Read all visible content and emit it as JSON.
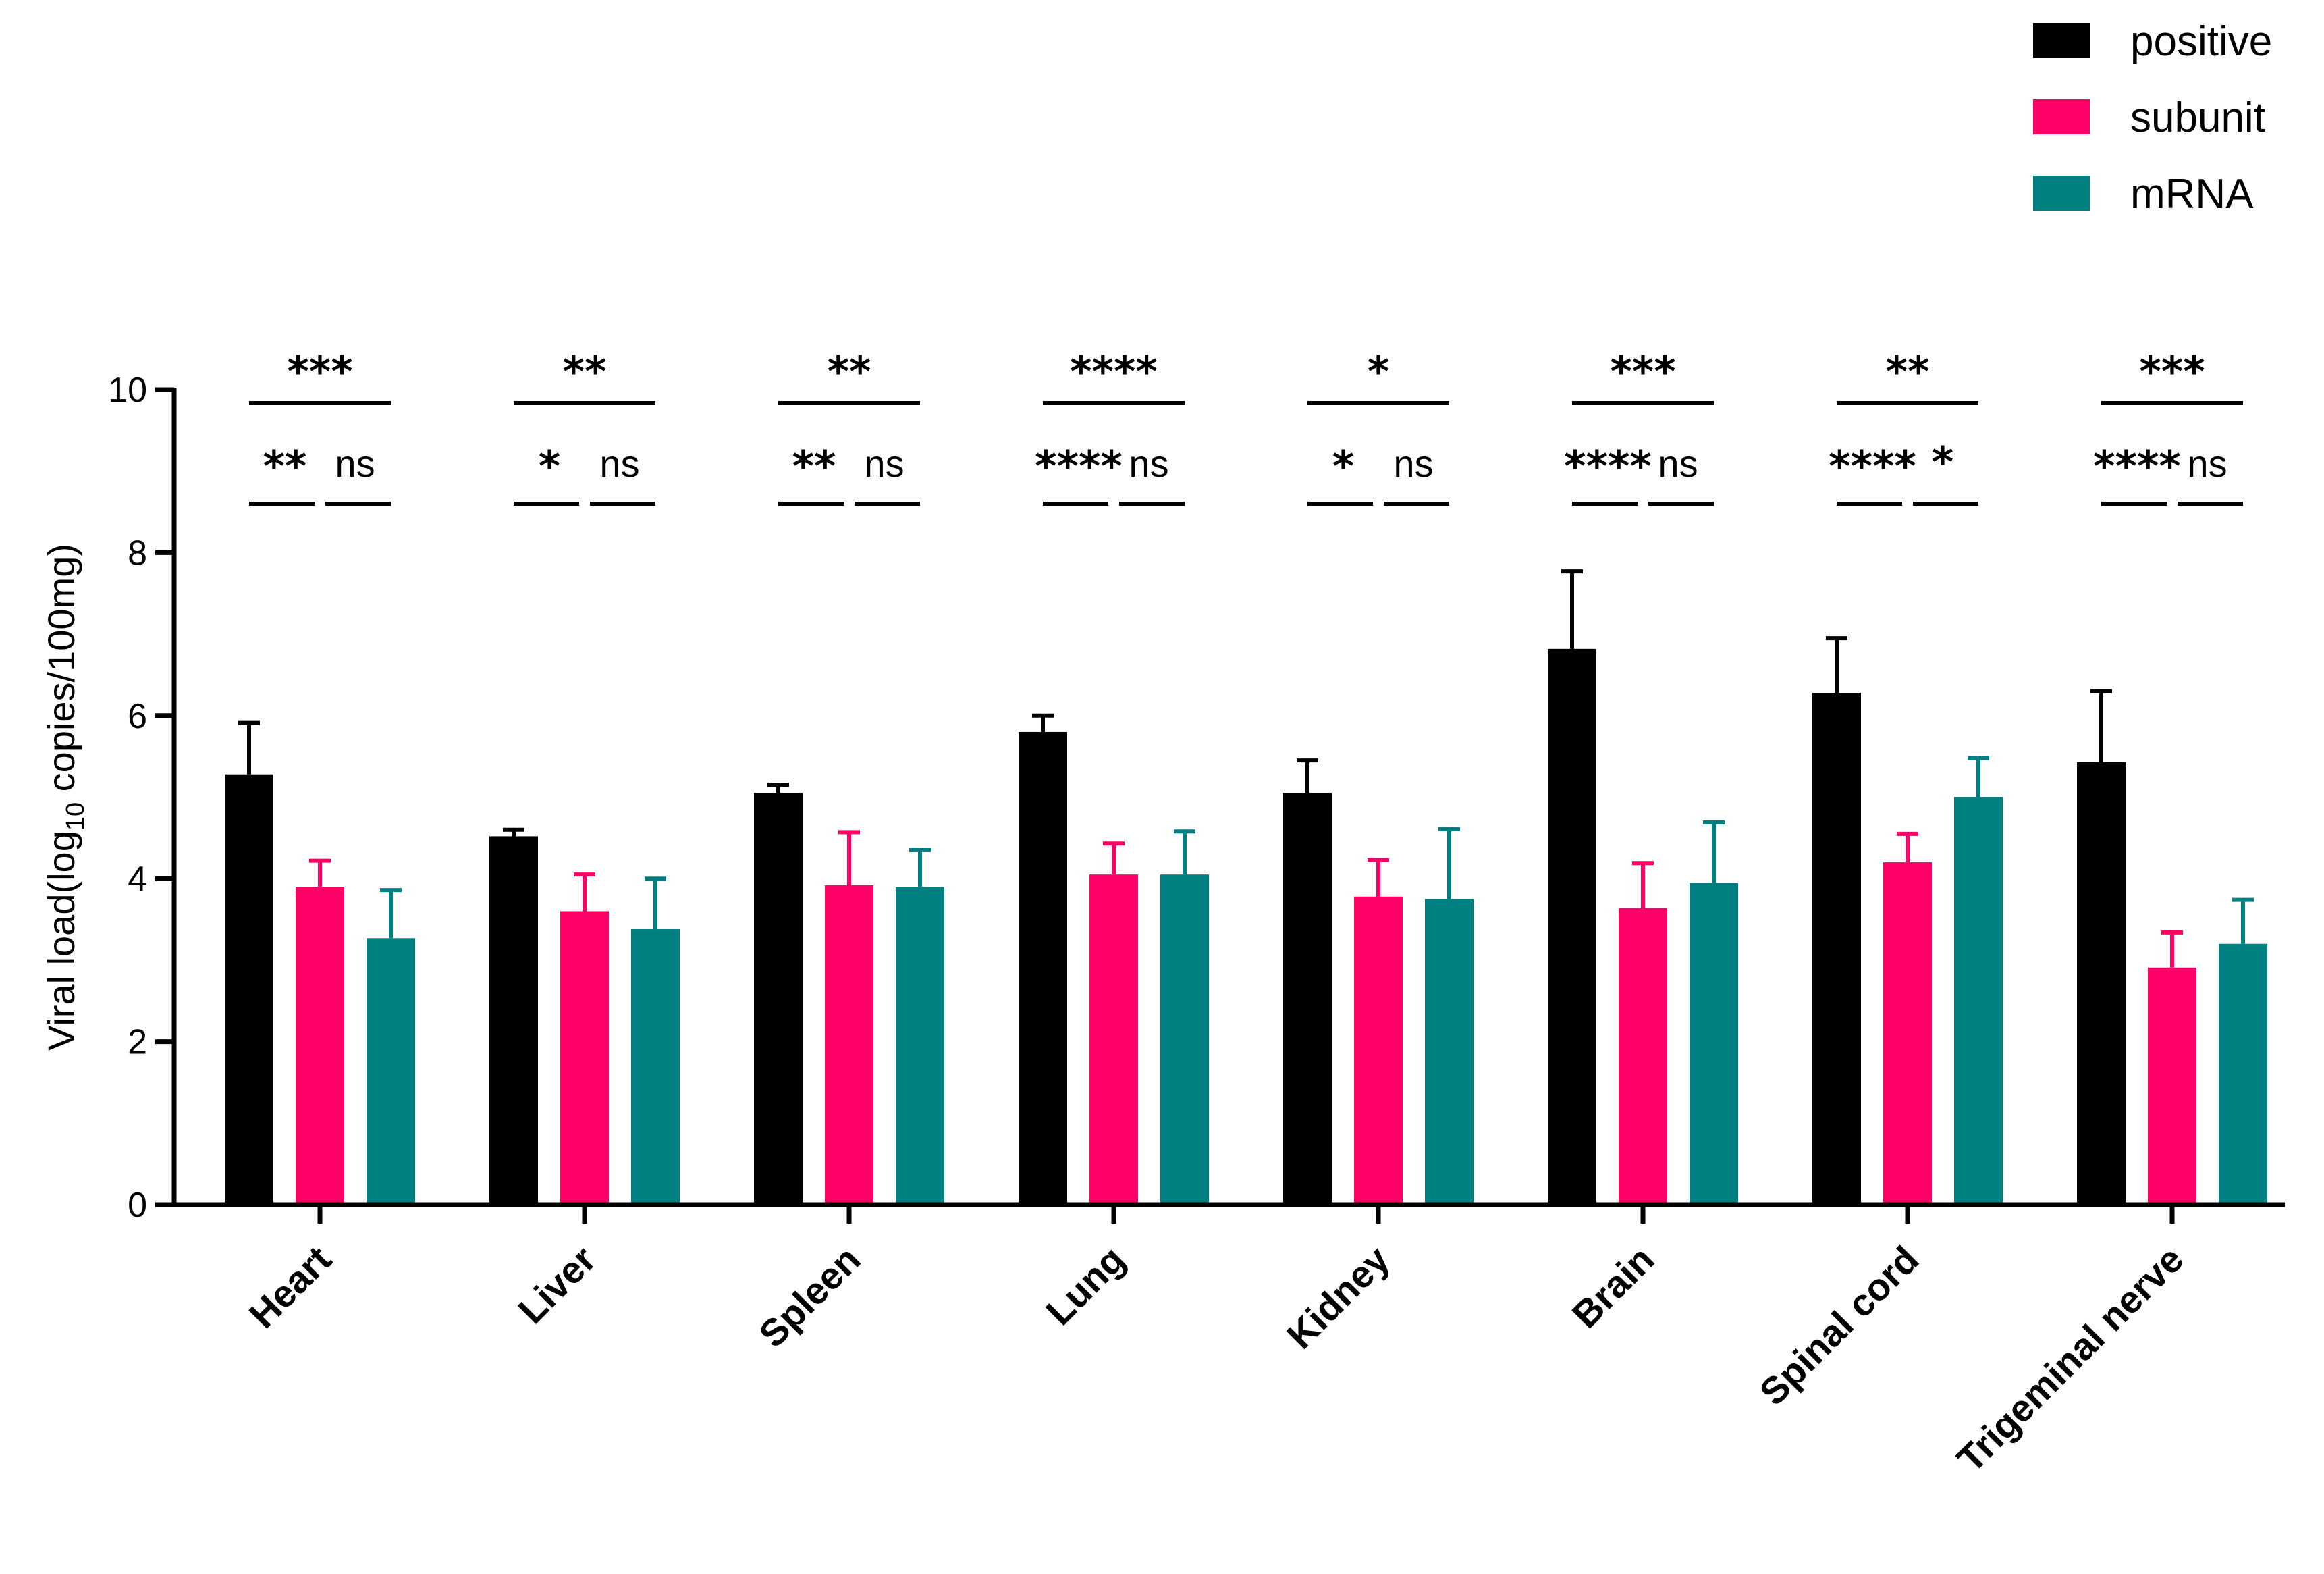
{
  "chart_data": {
    "type": "bar",
    "title": "",
    "xlabel": "",
    "ylabel": {
      "prefix": "Viral load(log",
      "subscript": "10",
      "suffix": " copies/100mg)"
    },
    "ylim": [
      0,
      10
    ],
    "yticks": [
      0,
      2,
      4,
      6,
      8,
      10
    ],
    "categories": [
      "Heart",
      "Liver",
      "Spleen",
      "Lung",
      "Kidney",
      "Brain",
      "Spinal cord",
      "Trigeminal nerve"
    ],
    "series": [
      {
        "name": "positive",
        "color": "#000000",
        "values": [
          5.28,
          4.52,
          5.05,
          5.8,
          5.05,
          6.82,
          6.28,
          5.43
        ],
        "errors": [
          0.63,
          0.08,
          0.1,
          0.2,
          0.4,
          0.95,
          0.67,
          0.87
        ]
      },
      {
        "name": "subunit",
        "color": "#FF0066",
        "values": [
          3.9,
          3.6,
          3.92,
          4.05,
          3.78,
          3.64,
          4.2,
          2.91
        ],
        "errors": [
          0.32,
          0.45,
          0.65,
          0.38,
          0.45,
          0.55,
          0.35,
          0.43
        ]
      },
      {
        "name": "mRNA",
        "color": "#008080",
        "values": [
          3.27,
          3.38,
          3.9,
          4.05,
          3.75,
          3.95,
          5.0,
          3.2
        ],
        "errors": [
          0.59,
          0.62,
          0.45,
          0.53,
          0.86,
          0.74,
          0.48,
          0.54
        ]
      }
    ],
    "legend_position": "top-right",
    "significance": [
      {
        "top": "***",
        "left": "**",
        "right": "ns"
      },
      {
        "top": "**",
        "left": "*",
        "right": "ns"
      },
      {
        "top": "**",
        "left": "**",
        "right": "ns"
      },
      {
        "top": "****",
        "left": "****",
        "right": "ns"
      },
      {
        "top": "*",
        "left": "*",
        "right": "ns"
      },
      {
        "top": "***",
        "left": "****",
        "right": "ns"
      },
      {
        "top": "**",
        "left": "****",
        "right": "*"
      },
      {
        "top": "***",
        "left": "****",
        "right": "ns"
      }
    ]
  }
}
